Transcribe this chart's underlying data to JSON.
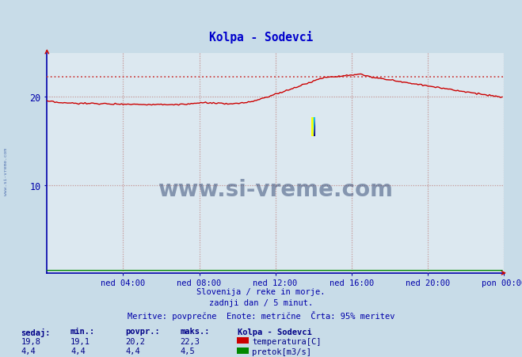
{
  "title": "Kolpa - Sodevci",
  "title_color": "#0000cc",
  "bg_color": "#c8dce8",
  "plot_bg_color": "#dce8f0",
  "grid_color": "#c8a0a0",
  "grid_linestyle": ":",
  "axis_color": "#0000aa",
  "temp_color": "#cc0000",
  "flow_color": "#008800",
  "dotted_color": "#cc4444",
  "watermark_text": "www.si-vreme.com",
  "watermark_color": "#1a3060",
  "watermark_alpha": 0.45,
  "footer_color": "#0000aa",
  "sidebar_color": "#6688bb",
  "stats_color": "#000088",
  "xlabel_ticks": [
    "ned 04:00",
    "ned 08:00",
    "ned 12:00",
    "ned 16:00",
    "ned 20:00",
    "pon 00:00"
  ],
  "yticks": [
    10,
    20
  ],
  "ymin": 0,
  "ymax": 25,
  "footer_lines": [
    "Slovenija / reke in morje.",
    "zadnji dan / 5 minut.",
    "Meritve: povprečne  Enote: metrične  Črta: 95% meritev"
  ],
  "stats_headers": [
    "sedaj:",
    "min.:",
    "povpr.:",
    "maks.:"
  ],
  "stats_temp": [
    19.8,
    19.1,
    20.2,
    22.3
  ],
  "stats_flow": [
    4.4,
    4.4,
    4.4,
    4.5
  ],
  "legend_title": "Kolpa - Sodevci",
  "legend_items": [
    "temperatura[C]",
    "pretok[m3/s]"
  ],
  "legend_colors": [
    "#cc0000",
    "#008800"
  ],
  "hline_95pct": 22.3,
  "n_points": 288
}
